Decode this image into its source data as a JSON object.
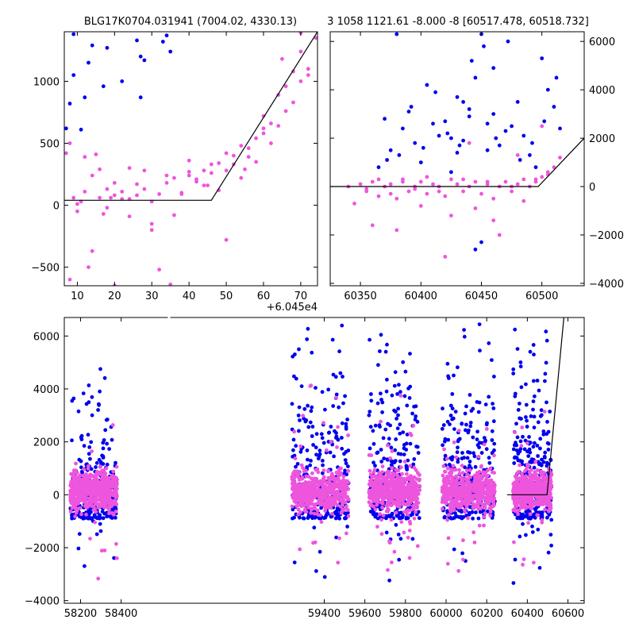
{
  "titles": {
    "left": "BLG17K0704.031941 (7004.02, 4330.13)",
    "right": "3 1058 1121.61 -8.000 -8 [60517.478, 60518.732]"
  },
  "colors": {
    "series_a": "#0000ee",
    "series_b": "#ee55dd",
    "model": "#000000"
  },
  "chart_data": [
    {
      "type": "scatter",
      "panel": "zoom",
      "xlim": [
        6.5,
        74.5
      ],
      "ylim": [
        -650,
        1400
      ],
      "x_offset_label": "+6.045e4",
      "x_ticks": [
        10,
        20,
        30,
        40,
        50,
        60,
        70
      ],
      "y_ticks": [
        -500,
        0,
        500,
        1000
      ],
      "x_tick_labels": [
        "10",
        "20",
        "30",
        "40",
        "50",
        "60",
        "70"
      ],
      "y_tick_labels": [
        "−500",
        "0",
        "500",
        "1000"
      ],
      "model": {
        "x": [
          6.5,
          46,
          74.5
        ],
        "y": [
          40,
          40,
          1400
        ]
      },
      "series": [
        {
          "color": "#0000ee",
          "x": [
            9,
            12,
            14,
            27,
            27,
            28,
            33,
            34,
            35,
            22,
            7,
            17,
            8,
            9,
            11,
            13,
            18,
            26
          ],
          "y": [
            1380,
            870,
            1290,
            1200,
            870,
            1170,
            1320,
            1370,
            1240,
            1000,
            620,
            960,
            820,
            1050,
            610,
            1150,
            1270,
            1330
          ]
        },
        {
          "color": "#ee55dd",
          "x": [
            7,
            8,
            9,
            10,
            11,
            12,
            13,
            14,
            15,
            16,
            17,
            18,
            19,
            20,
            22,
            24,
            26,
            28,
            30,
            32,
            34,
            36,
            38,
            40,
            42,
            44,
            46,
            48,
            50,
            52,
            54,
            56,
            58,
            60,
            62,
            64,
            66,
            68,
            70,
            72,
            74,
            8,
            10,
            12,
            14,
            16,
            18,
            20,
            22,
            24,
            26,
            28,
            30,
            32,
            34,
            36,
            38,
            40,
            42,
            44,
            46,
            48,
            50,
            52,
            54,
            56,
            58,
            60,
            62,
            64,
            66,
            68,
            70,
            72,
            20,
            24,
            30,
            35,
            40,
            45,
            50,
            55,
            60,
            65,
            70
          ],
          "y": [
            420,
            500,
            60,
            -50,
            30,
            110,
            -500,
            240,
            410,
            60,
            -70,
            -20,
            60,
            80,
            110,
            50,
            170,
            280,
            -150,
            90,
            180,
            220,
            100,
            360,
            190,
            280,
            260,
            120,
            420,
            330,
            480,
            390,
            540,
            620,
            500,
            640,
            760,
            830,
            1000,
            1100,
            1350,
            -600,
            10,
            390,
            -370,
            290,
            130,
            -650,
            50,
            -90,
            80,
            130,
            30,
            -520,
            240,
            -80,
            90,
            270,
            210,
            160,
            330,
            340,
            280,
            400,
            220,
            460,
            350,
            580,
            660,
            890,
            960,
            1080,
            1240,
            1050,
            180,
            300,
            -200,
            -640,
            240,
            160,
            -280,
            290,
            720,
            1180,
            1390
          ]
        }
      ]
    },
    {
      "type": "scatter",
      "panel": "season",
      "xlim": [
        60325,
        60535
      ],
      "ylim": [
        -4100,
        6400
      ],
      "x_ticks": [
        60350,
        60400,
        60450,
        60500
      ],
      "y_ticks": [
        -4000,
        -2000,
        0,
        2000,
        4000,
        6000
      ],
      "x_tick_labels": [
        "60350",
        "60400",
        "60450",
        "60500"
      ],
      "y_tick_labels": [
        "−4000",
        "−2000",
        "0",
        "2000",
        "4000",
        "6000"
      ],
      "model": {
        "x": [
          60325,
          60497,
          60535
        ],
        "y": [
          0,
          0,
          2000
        ]
      },
      "series": [
        {
          "color": "#0000ee",
          "x": [
            60365,
            60370,
            60375,
            60380,
            60385,
            60390,
            60395,
            60400,
            60405,
            60410,
            60415,
            60420,
            60425,
            60430,
            60435,
            60440,
            60445,
            60450,
            60455,
            60460,
            60465,
            60470,
            60475,
            60480,
            60485,
            60490,
            60495,
            60500,
            60505,
            60510,
            60515,
            60372,
            60382,
            60392,
            60402,
            60412,
            60422,
            60432,
            60442,
            60452,
            60462,
            60472,
            60482,
            60492,
            60502,
            60512,
            60445,
            60450,
            60440,
            60455,
            60460,
            60435,
            60430,
            60425
          ],
          "y": [
            800,
            2800,
            1500,
            6300,
            2400,
            3100,
            1800,
            1000,
            4200,
            2600,
            2100,
            2700,
            600,
            3700,
            1900,
            2900,
            4500,
            6300,
            1500,
            3000,
            1700,
            2300,
            2500,
            3500,
            2100,
            1300,
            800,
            5300,
            4000,
            3300,
            2400,
            1100,
            1300,
            3300,
            1600,
            3900,
            2200,
            1700,
            5200,
            5800,
            2000,
            6000,
            1100,
            1800,
            2700,
            4500,
            -2600,
            -2300,
            3200,
            2600,
            4900,
            3500,
            1400,
            2000
          ]
        },
        {
          "color": "#ee55dd",
          "x": [
            60340,
            60345,
            60350,
            60355,
            60360,
            60365,
            60370,
            60375,
            60380,
            60385,
            60390,
            60395,
            60400,
            60405,
            60410,
            60415,
            60420,
            60425,
            60430,
            60435,
            60440,
            60445,
            60450,
            60455,
            60460,
            60465,
            60470,
            60475,
            60480,
            60485,
            60490,
            60495,
            60500,
            60505,
            60510,
            60515,
            60355,
            60365,
            60375,
            60385,
            60395,
            60405,
            60415,
            60425,
            60435,
            60445,
            60455,
            60465,
            60475,
            60485,
            60495,
            60505,
            60360,
            60380,
            60400,
            60420,
            60440,
            60460,
            60480,
            60500
          ],
          "y": [
            0,
            -700,
            100,
            -200,
            200,
            -400,
            0,
            100,
            -1800,
            300,
            -200,
            0,
            200,
            -300,
            100,
            0,
            -400,
            300,
            100,
            -200,
            0,
            200,
            -300,
            100,
            -500,
            0,
            200,
            -200,
            100,
            300,
            0,
            200,
            400,
            600,
            800,
            1200,
            -100,
            300,
            -300,
            200,
            -100,
            400,
            -200,
            -1200,
            300,
            -900,
            200,
            -2000,
            0,
            -600,
            300,
            500,
            -1600,
            -500,
            -800,
            -2900,
            1800,
            -1400,
            1300,
            2500
          ]
        }
      ]
    },
    {
      "type": "scatter",
      "panel": "full",
      "xlim": [
        58120,
        60680
      ],
      "ylim": [
        -4100,
        6700
      ],
      "x_ticks": [
        58200,
        58400,
        59400,
        59600,
        59800,
        60000,
        60200,
        60400,
        60600
      ],
      "y_ticks": [
        -4000,
        -2000,
        0,
        2000,
        4000,
        6000
      ],
      "x_tick_labels": [
        "58200",
        "58400",
        "59400",
        "59600",
        "59800",
        "60000",
        "60200",
        "60400",
        "60600"
      ],
      "y_tick_labels": [
        "−4000",
        "−2000",
        "0",
        "2000",
        "4000",
        "6000"
      ],
      "model": {
        "x": [
          60300,
          60497,
          60580
        ],
        "y": [
          0,
          0,
          6700
        ]
      },
      "seasons": [
        {
          "x0": 58150,
          "x1": 58380
        },
        {
          "x0": 59240,
          "x1": 59520
        },
        {
          "x0": 59620,
          "x1": 59870
        },
        {
          "x0": 59980,
          "x1": 60240
        },
        {
          "x0": 60330,
          "x1": 60520
        }
      ],
      "blue_heights": [
        [
          2500,
          5000,
          1500,
          2200,
          3200,
          5800,
          1800,
          900,
          1200
        ],
        [
          4600,
          3700,
          2500,
          5000,
          2800,
          6500,
          3300,
          1900,
          4100,
          2200,
          6300
        ],
        [
          2700,
          4100,
          6600,
          3500,
          2300,
          5700,
          1500,
          3000,
          6200,
          4000
        ],
        [
          6500,
          2800,
          4300,
          1600,
          5200,
          2500,
          3900,
          6100,
          2200,
          3400
        ],
        [
          3400,
          6500,
          4800,
          2000,
          5600,
          3000,
          1500,
          6400,
          4200
        ]
      ],
      "pink_heights": [
        [
          1200,
          -1800,
          800,
          -2900,
          1500,
          -1000,
          3600,
          -3500,
          600
        ],
        [
          1400,
          -2600,
          900,
          4600,
          -1100,
          2800,
          -1900,
          1100,
          5200,
          -800
        ],
        [
          1800,
          -3200,
          2500,
          -1400,
          4100,
          -2400,
          1200,
          -2900,
          3000
        ],
        [
          1600,
          -3600,
          2200,
          -2100,
          3400,
          -1300,
          1500,
          -3100,
          2600
        ],
        [
          1300,
          -3400,
          2400,
          -1800,
          3800,
          -600,
          1500,
          -900
        ]
      ]
    }
  ]
}
